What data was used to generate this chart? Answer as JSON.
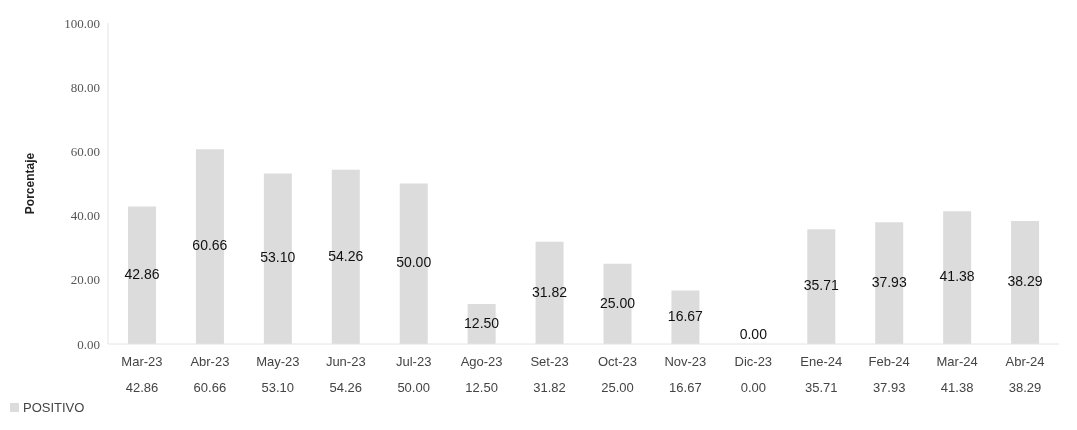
{
  "chart_data": {
    "type": "bar",
    "ylabel": "Porcentaje",
    "categories": [
      "Mar-23",
      "Abr-23",
      "May-23",
      "Jun-23",
      "Jul-23",
      "Ago-23",
      "Set-23",
      "Oct-23",
      "Nov-23",
      "Dic-23",
      "Ene-24",
      "Feb-24",
      "Mar-24",
      "Abr-24"
    ],
    "series": [
      {
        "name": "POSITIVO",
        "color": "#dcdcdc",
        "values": [
          42.86,
          60.66,
          53.1,
          54.26,
          50.0,
          12.5,
          31.82,
          25.0,
          16.67,
          0.0,
          35.71,
          37.93,
          41.38,
          38.29
        ],
        "value_labels": [
          "42.86",
          "60.66",
          "53.10",
          "54.26",
          "50.00",
          "12.50",
          "31.82",
          "25.00",
          "16.67",
          "0.00",
          "35.71",
          "37.93",
          "41.38",
          "38.29"
        ]
      }
    ],
    "ylim": [
      0,
      100
    ],
    "yticks": [
      {
        "value": 0,
        "label": "0.00"
      },
      {
        "value": 20,
        "label": "20.00"
      },
      {
        "value": 40,
        "label": "40.00"
      },
      {
        "value": 60,
        "label": "60.00"
      },
      {
        "value": 80,
        "label": "80.00"
      },
      {
        "value": 100,
        "label": "100.00"
      }
    ],
    "grid": false,
    "legend": "bottom left"
  }
}
